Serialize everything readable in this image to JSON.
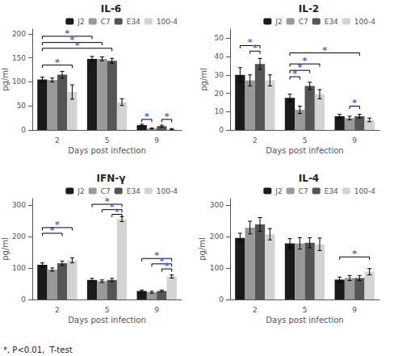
{
  "chart_data": [
    {
      "type": "bar",
      "title": "IL-6",
      "xlabel": "Days post infection",
      "ylabel": "pg/ml",
      "categories": [
        "2",
        "5",
        "9"
      ],
      "series": [
        {
          "name": "J2",
          "color": "#1a1a1a",
          "values": [
            105,
            148,
            10
          ],
          "errors": [
            5,
            5,
            2
          ]
        },
        {
          "name": "C7",
          "color": "#999999",
          "values": [
            104,
            148,
            3
          ],
          "errors": [
            4,
            4,
            1
          ]
        },
        {
          "name": "E34",
          "color": "#555555",
          "values": [
            115,
            144,
            8
          ],
          "errors": [
            7,
            5,
            2
          ]
        },
        {
          "name": "100-4",
          "color": "#d3d3d3",
          "values": [
            79,
            58,
            2
          ],
          "errors": [
            15,
            7,
            1
          ]
        }
      ],
      "ylim": [
        0,
        210
      ],
      "yticks": [
        0,
        50,
        100,
        150,
        200
      ],
      "grid": false,
      "legend": "upper right",
      "annotations": [
        {
          "text": "*",
          "color": "#4169e1",
          "from": [
            "2",
            "J2"
          ],
          "to": [
            "5",
            "J2"
          ],
          "y": 195
        },
        {
          "text": "*",
          "color": "#4169e1",
          "from": [
            "2",
            "J2"
          ],
          "to": [
            "5",
            "C7"
          ],
          "y": 182
        },
        {
          "text": "*",
          "color": "#4169e1",
          "from": [
            "2",
            "J2"
          ],
          "to": [
            "5",
            "E34"
          ],
          "y": 170
        },
        {
          "text": "*",
          "color": "#4169e1",
          "from": [
            "2",
            "J2"
          ],
          "to": [
            "2",
            "100-4"
          ],
          "y": 135
        },
        {
          "text": "*",
          "color": "#4169e1",
          "from": [
            "9",
            "J2"
          ],
          "to": [
            "9",
            "C7"
          ],
          "y": 22
        },
        {
          "text": "*",
          "color": "#4169e1",
          "from": [
            "9",
            "E34"
          ],
          "to": [
            "9",
            "100-4"
          ],
          "y": 22
        }
      ]
    },
    {
      "type": "bar",
      "title": "IL-2",
      "xlabel": "Days post infection",
      "ylabel": "pg/ml",
      "categories": [
        "2",
        "5",
        "9"
      ],
      "series": [
        {
          "name": "J2",
          "color": "#1a1a1a",
          "values": [
            30,
            17.5,
            7.5
          ],
          "errors": [
            4,
            2,
            1
          ]
        },
        {
          "name": "C7",
          "color": "#999999",
          "values": [
            27,
            11,
            6.5
          ],
          "errors": [
            3,
            2,
            1
          ]
        },
        {
          "name": "E34",
          "color": "#555555",
          "values": [
            36,
            24,
            7.5
          ],
          "errors": [
            3,
            2,
            1
          ]
        },
        {
          "name": "100-4",
          "color": "#d3d3d3",
          "values": [
            27,
            19.5,
            5.5
          ],
          "errors": [
            3,
            2.5,
            1
          ]
        }
      ],
      "ylim": [
        0,
        55
      ],
      "yticks": [
        0,
        10,
        20,
        30,
        40,
        50
      ],
      "grid": false,
      "legend": "upper right",
      "annotations": [
        {
          "text": "*",
          "color": "#4169e1",
          "from": [
            "2",
            "J2"
          ],
          "to": [
            "2",
            "E34"
          ],
          "y": 46
        },
        {
          "text": "*",
          "color": "#4169e1",
          "from": [
            "2",
            "C7"
          ],
          "to": [
            "2",
            "E34"
          ],
          "y": 43
        },
        {
          "text": "*",
          "color": "#4169e1",
          "from": [
            "5",
            "J2"
          ],
          "to": [
            "9",
            "E34"
          ],
          "y": 42
        },
        {
          "text": "*",
          "color": "#4169e1",
          "from": [
            "5",
            "J2"
          ],
          "to": [
            "5",
            "C7"
          ],
          "y": 29
        },
        {
          "text": "*",
          "color": "#4169e1",
          "from": [
            "5",
            "J2"
          ],
          "to": [
            "5",
            "E34"
          ],
          "y": 32.5
        },
        {
          "text": "*",
          "color": "#4169e1",
          "from": [
            "5",
            "J2"
          ],
          "to": [
            "5",
            "100-4"
          ],
          "y": 36
        },
        {
          "text": "*",
          "color": "#4169e1",
          "from": [
            "9",
            "C7"
          ],
          "to": [
            "9",
            "E34"
          ],
          "y": 13
        }
      ]
    },
    {
      "type": "bar",
      "title": "IFN-γ",
      "xlabel": "Days post infection",
      "ylabel": "pg/ml",
      "categories": [
        "2",
        "5",
        "9"
      ],
      "series": [
        {
          "name": "J2",
          "color": "#1a1a1a",
          "values": [
            110,
            62,
            27
          ],
          "errors": [
            6,
            5,
            3
          ]
        },
        {
          "name": "C7",
          "color": "#999999",
          "values": [
            95,
            58,
            23
          ],
          "errors": [
            5,
            4,
            3
          ]
        },
        {
          "name": "E34",
          "color": "#555555",
          "values": [
            115,
            62,
            27
          ],
          "errors": [
            7,
            5,
            3
          ]
        },
        {
          "name": "100-4",
          "color": "#d3d3d3",
          "values": [
            124,
            255,
            73
          ],
          "errors": [
            8,
            8,
            5
          ]
        }
      ],
      "ylim": [
        0,
        320
      ],
      "yticks": [
        0,
        100,
        200,
        300
      ],
      "grid": false,
      "legend": "upper right",
      "annotations": [
        {
          "text": "*",
          "color": "#4169e1",
          "from": [
            "2",
            "J2"
          ],
          "to": [
            "2",
            "E34"
          ],
          "y": 210
        },
        {
          "text": "*",
          "color": "#4169e1",
          "from": [
            "2",
            "J2"
          ],
          "to": [
            "2",
            "100-4"
          ],
          "y": 228
        },
        {
          "text": "*",
          "color": "#4169e1",
          "from": [
            "5",
            "J2"
          ],
          "to": [
            "5",
            "100-4"
          ],
          "y": 302
        },
        {
          "text": "*",
          "color": "#4169e1",
          "from": [
            "5",
            "C7"
          ],
          "to": [
            "5",
            "100-4"
          ],
          "y": 285
        },
        {
          "text": "*",
          "color": "#4169e1",
          "from": [
            "5",
            "E34"
          ],
          "to": [
            "5",
            "100-4"
          ],
          "y": 270
        },
        {
          "text": "*",
          "color": "#4169e1",
          "from": [
            "9",
            "J2"
          ],
          "to": [
            "9",
            "100-4"
          ],
          "y": 130
        },
        {
          "text": "*",
          "color": "#4169e1",
          "from": [
            "9",
            "C7"
          ],
          "to": [
            "9",
            "100-4"
          ],
          "y": 113
        },
        {
          "text": "*",
          "color": "#4169e1",
          "from": [
            "9",
            "E34"
          ],
          "to": [
            "9",
            "100-4"
          ],
          "y": 97
        }
      ]
    },
    {
      "type": "bar",
      "title": "IL-4",
      "xlabel": "Days post infection",
      "ylabel": "pg/ml",
      "categories": [
        "2",
        "5",
        "9"
      ],
      "series": [
        {
          "name": "J2",
          "color": "#1a1a1a",
          "values": [
            195,
            178,
            63
          ],
          "errors": [
            15,
            15,
            8
          ]
        },
        {
          "name": "C7",
          "color": "#999999",
          "values": [
            228,
            178,
            68
          ],
          "errors": [
            20,
            18,
            8
          ]
        },
        {
          "name": "E34",
          "color": "#555555",
          "values": [
            238,
            180,
            68
          ],
          "errors": [
            22,
            16,
            8
          ]
        },
        {
          "name": "100-4",
          "color": "#d3d3d3",
          "values": [
            207,
            175,
            88
          ],
          "errors": [
            18,
            20,
            10
          ]
        }
      ],
      "ylim": [
        0,
        320
      ],
      "yticks": [
        0,
        100,
        200,
        300
      ],
      "grid": false,
      "legend": "upper right",
      "annotations": [
        {
          "text": "*",
          "color": "#4169e1",
          "from": [
            "9",
            "J2"
          ],
          "to": [
            "9",
            "100-4"
          ],
          "y": 135
        }
      ]
    }
  ],
  "footnote": "*, P<0.01,  T-test"
}
